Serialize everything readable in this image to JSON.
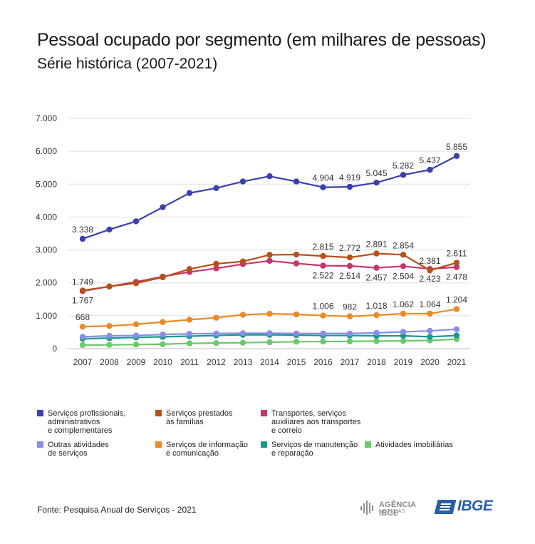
{
  "title": "Pessoal ocupado por segmento (em milhares de pessoas)",
  "subtitle": "Série histórica (2007-2021)",
  "source": "Fonte: Pesquisa Anual de Serviços - 2021",
  "logos": {
    "agencia": "AGÊNCIA IBGE",
    "agencia_sub": "NOTÍCIAS",
    "ibge": "IBGE"
  },
  "chart_data": {
    "type": "line",
    "title": "Pessoal ocupado por segmento (em milhares de pessoas)",
    "subtitle": "Série histórica (2007-2021)",
    "xlabel": "",
    "ylabel": "",
    "ylim": [
      0,
      7000
    ],
    "y_ticks": [
      "0",
      "1.000",
      "2.000",
      "3.000",
      "4.000",
      "5.000",
      "6.000",
      "7.000"
    ],
    "y_tick_values": [
      0,
      1000,
      2000,
      3000,
      4000,
      5000,
      6000,
      7000
    ],
    "grid": true,
    "legend_position": "bottom",
    "x": [
      "2007",
      "2008",
      "2009",
      "2010",
      "2011",
      "2012",
      "2013",
      "2014",
      "2015",
      "2016",
      "2017",
      "2018",
      "2019",
      "2020",
      "2021"
    ],
    "series": [
      {
        "name": "Serviços profissionais, administrativos e complementares",
        "legend_label": "Serviços profissionais,\nadministrativos\ne complementares",
        "color": "#3b3faf",
        "values": [
          3338,
          3620,
          3870,
          4300,
          4730,
          4880,
          5080,
          5240,
          5080,
          4904,
          4919,
          5045,
          5282,
          5437,
          5855
        ],
        "labels": [
          {
            "i": 0,
            "text": "3.338",
            "pos": "above"
          },
          {
            "i": 9,
            "text": "4.904",
            "pos": "above"
          },
          {
            "i": 10,
            "text": "4.919",
            "pos": "above"
          },
          {
            "i": 11,
            "text": "5.045",
            "pos": "above"
          },
          {
            "i": 12,
            "text": "5.282",
            "pos": "above"
          },
          {
            "i": 13,
            "text": "5.437",
            "pos": "above"
          },
          {
            "i": 14,
            "text": "5.855",
            "pos": "above"
          }
        ]
      },
      {
        "name": "Serviços prestados às famílias",
        "legend_label": "Serviços prestados\nàs famílias",
        "color": "#b5501a",
        "values": [
          1767,
          1890,
          1990,
          2170,
          2420,
          2580,
          2650,
          2850,
          2860,
          2815,
          2772,
          2891,
          2854,
          2381,
          2611
        ],
        "labels": [
          {
            "i": 0,
            "text": "1.767",
            "pos": "below"
          },
          {
            "i": 9,
            "text": "2.815",
            "pos": "above"
          },
          {
            "i": 10,
            "text": "2.772",
            "pos": "above"
          },
          {
            "i": 11,
            "text": "2.891",
            "pos": "above"
          },
          {
            "i": 12,
            "text": "2.854",
            "pos": "above"
          },
          {
            "i": 13,
            "text": "2.381",
            "pos": "above"
          },
          {
            "i": 14,
            "text": "2.611",
            "pos": "above"
          }
        ]
      },
      {
        "name": "Transportes, serviços auxiliares aos transportes e correio",
        "legend_label": "Transportes, serviços\nauxiliares aos transportes\ne correio",
        "color": "#c8356c",
        "values": [
          1749,
          1890,
          2030,
          2190,
          2330,
          2440,
          2570,
          2670,
          2590,
          2522,
          2514,
          2457,
          2504,
          2423,
          2478
        ],
        "labels": [
          {
            "i": 0,
            "text": "1.749",
            "pos": "above"
          },
          {
            "i": 9,
            "text": "2.522",
            "pos": "below"
          },
          {
            "i": 10,
            "text": "2.514",
            "pos": "below"
          },
          {
            "i": 11,
            "text": "2.457",
            "pos": "below"
          },
          {
            "i": 12,
            "text": "2.504",
            "pos": "below"
          },
          {
            "i": 13,
            "text": "2.423",
            "pos": "below"
          },
          {
            "i": 14,
            "text": "2.478",
            "pos": "below"
          }
        ]
      },
      {
        "name": "Outras atividades de serviços",
        "legend_label": "Outras atividades\nde serviços",
        "color": "#8a8de6",
        "values": [
          360,
          390,
          400,
          430,
          450,
          460,
          470,
          470,
          460,
          460,
          460,
          480,
          510,
          540,
          590
        ],
        "labels": []
      },
      {
        "name": "Serviços de informação e comunicação",
        "legend_label": "Serviços de informação\ne comunicação",
        "color": "#e98a26",
        "values": [
          668,
          690,
          740,
          810,
          880,
          940,
          1030,
          1060,
          1040,
          1006,
          982,
          1018,
          1062,
          1064,
          1204
        ],
        "labels": [
          {
            "i": 0,
            "text": "668",
            "pos": "above"
          },
          {
            "i": 9,
            "text": "1.006",
            "pos": "above"
          },
          {
            "i": 10,
            "text": "982",
            "pos": "above"
          },
          {
            "i": 11,
            "text": "1.018",
            "pos": "above"
          },
          {
            "i": 12,
            "text": "1.062",
            "pos": "above"
          },
          {
            "i": 13,
            "text": "1.064",
            "pos": "above"
          },
          {
            "i": 14,
            "text": "1.204",
            "pos": "above"
          }
        ]
      },
      {
        "name": "Serviços de manutenção e reparação",
        "legend_label": "Serviços de manutenção\ne reparação",
        "color": "#159a8c",
        "values": [
          300,
          320,
          340,
          360,
          380,
          400,
          420,
          420,
          410,
          400,
          400,
          390,
          390,
          360,
          400
        ],
        "labels": []
      },
      {
        "name": "Atividades imobiliárias",
        "legend_label": "Atividades imobiliárias",
        "color": "#6cc96a",
        "values": [
          110,
          115,
          125,
          135,
          160,
          170,
          180,
          195,
          210,
          215,
          220,
          230,
          235,
          250,
          290
        ],
        "labels": []
      }
    ]
  }
}
